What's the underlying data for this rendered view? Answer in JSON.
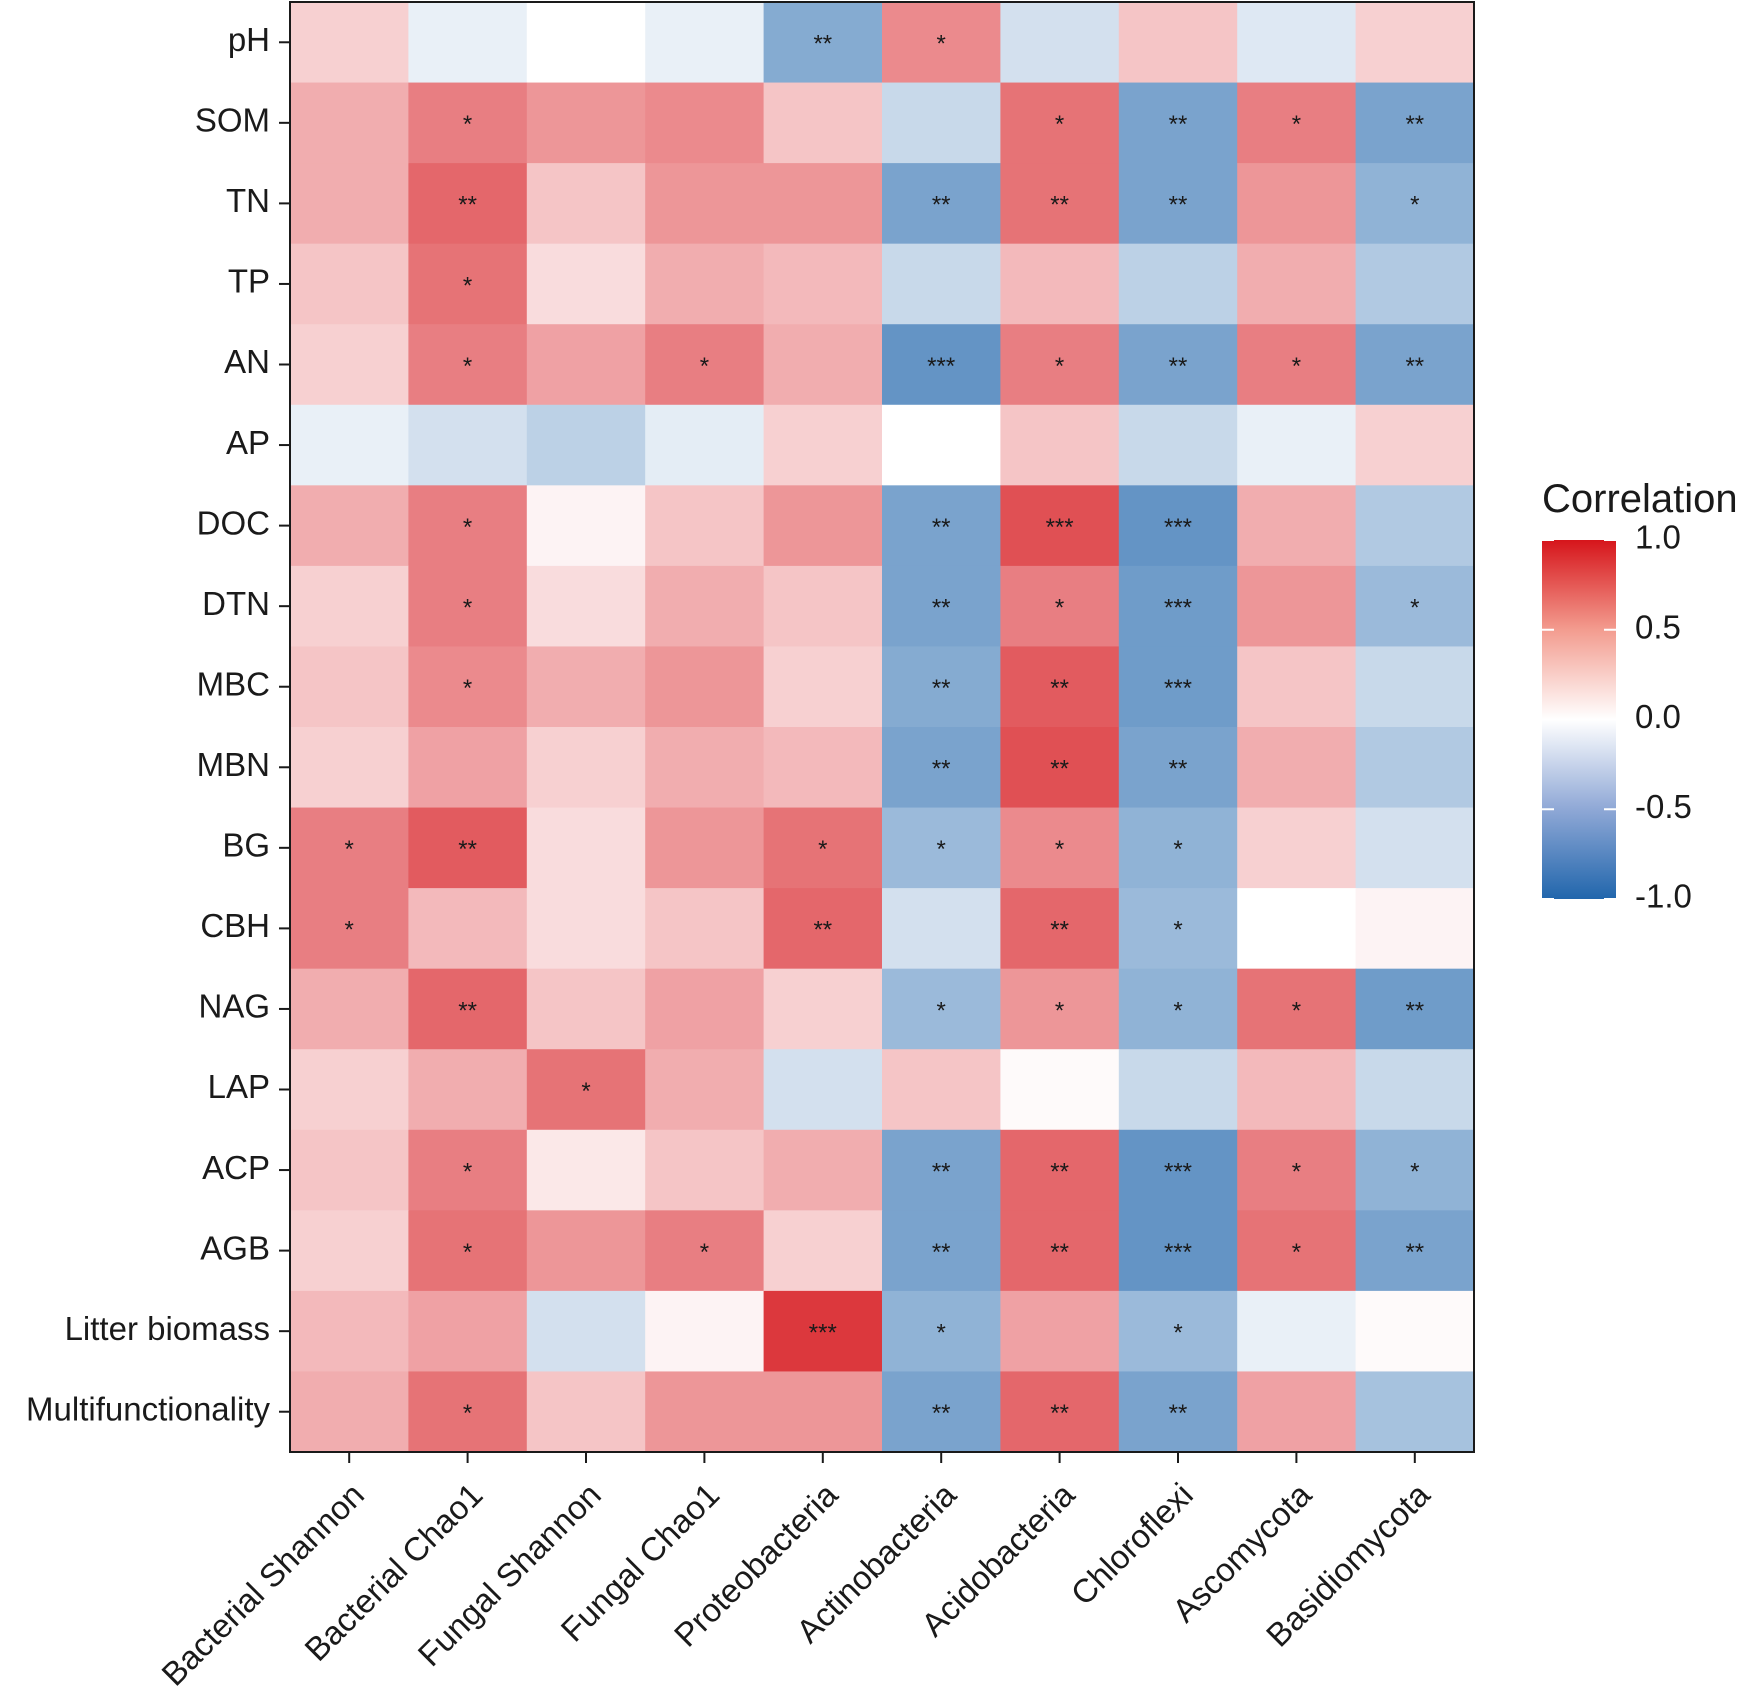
{
  "chart_data": {
    "type": "heatmap",
    "title": "",
    "xlabel": "",
    "ylabel": "",
    "rows": [
      "pH",
      "SOM",
      "TN",
      "TP",
      "AN",
      "AP",
      "DOC",
      "DTN",
      "MBC",
      "MBN",
      "BG",
      "CBH",
      "NAG",
      "LAP",
      "ACP",
      "AGB",
      "Litter biomass",
      "Multifunctionality"
    ],
    "columns": [
      "Bacterial Shannon",
      "Bacterial Chao1",
      "Fungal Shannon",
      "Fungal Chao1",
      "Proteobacteria",
      "Actinobacteria",
      "Acidobacteria",
      "Chloroflexi",
      "Ascomycota",
      "Basidiomycota"
    ],
    "values": [
      [
        0.2,
        -0.1,
        0.0,
        -0.1,
        -0.55,
        0.5,
        -0.2,
        0.25,
        -0.15,
        0.2
      ],
      [
        0.35,
        0.55,
        0.45,
        0.5,
        0.25,
        -0.25,
        0.6,
        -0.6,
        0.55,
        -0.6
      ],
      [
        0.35,
        0.65,
        0.25,
        0.45,
        0.45,
        -0.6,
        0.6,
        -0.6,
        0.45,
        -0.5
      ],
      [
        0.25,
        0.6,
        0.15,
        0.35,
        0.3,
        -0.25,
        0.3,
        -0.3,
        0.35,
        -0.35
      ],
      [
        0.2,
        0.55,
        0.4,
        0.55,
        0.35,
        -0.7,
        0.55,
        -0.6,
        0.55,
        -0.6
      ],
      [
        -0.1,
        -0.2,
        -0.3,
        -0.12,
        0.2,
        0.0,
        0.25,
        -0.25,
        -0.1,
        0.2
      ],
      [
        0.35,
        0.55,
        0.05,
        0.25,
        0.45,
        -0.6,
        0.75,
        -0.7,
        0.35,
        -0.35
      ],
      [
        0.2,
        0.55,
        0.15,
        0.35,
        0.25,
        -0.6,
        0.55,
        -0.65,
        0.45,
        -0.45
      ],
      [
        0.25,
        0.5,
        0.35,
        0.45,
        0.2,
        -0.55,
        0.7,
        -0.65,
        0.25,
        -0.25
      ],
      [
        0.2,
        0.4,
        0.2,
        0.35,
        0.3,
        -0.6,
        0.75,
        -0.6,
        0.35,
        -0.35
      ],
      [
        0.55,
        0.7,
        0.15,
        0.45,
        0.6,
        -0.45,
        0.5,
        -0.5,
        0.2,
        -0.2
      ],
      [
        0.55,
        0.3,
        0.15,
        0.25,
        0.65,
        -0.2,
        0.65,
        -0.45,
        0.0,
        0.05
      ],
      [
        0.35,
        0.65,
        0.25,
        0.4,
        0.2,
        -0.45,
        0.45,
        -0.5,
        0.6,
        -0.65
      ],
      [
        0.2,
        0.35,
        0.6,
        0.35,
        -0.2,
        0.25,
        0.02,
        -0.25,
        0.3,
        -0.25
      ],
      [
        0.25,
        0.55,
        0.1,
        0.25,
        0.35,
        -0.6,
        0.65,
        -0.7,
        0.55,
        -0.5
      ],
      [
        0.2,
        0.6,
        0.45,
        0.55,
        0.2,
        -0.6,
        0.65,
        -0.7,
        0.6,
        -0.6
      ],
      [
        0.3,
        0.4,
        -0.2,
        0.05,
        0.85,
        -0.5,
        0.4,
        -0.45,
        -0.1,
        0.02
      ],
      [
        0.35,
        0.6,
        0.25,
        0.45,
        0.45,
        -0.6,
        0.65,
        -0.6,
        0.4,
        -0.4
      ]
    ],
    "significance": [
      [
        "",
        "",
        "",
        "",
        "**",
        "*",
        "",
        "",
        "",
        ""
      ],
      [
        "",
        "*",
        "",
        "",
        "",
        "",
        "*",
        "**",
        "*",
        "**"
      ],
      [
        "",
        "**",
        "",
        "",
        "",
        "**",
        "**",
        "**",
        "",
        "*"
      ],
      [
        "",
        "*",
        "",
        "",
        "",
        "",
        "",
        "",
        "",
        ""
      ],
      [
        "",
        "*",
        "",
        "*",
        "",
        "***",
        "*",
        "**",
        "*",
        "**"
      ],
      [
        "",
        "",
        "",
        "",
        "",
        "",
        "",
        "",
        "",
        ""
      ],
      [
        "",
        "*",
        "",
        "",
        "",
        "**",
        "***",
        "***",
        "",
        ""
      ],
      [
        "",
        "*",
        "",
        "",
        "",
        "**",
        "*",
        "***",
        "",
        "*"
      ],
      [
        "",
        "*",
        "",
        "",
        "",
        "**",
        "**",
        "***",
        "",
        ""
      ],
      [
        "",
        "",
        "",
        "",
        "",
        "**",
        "**",
        "**",
        "",
        ""
      ],
      [
        "*",
        "**",
        "",
        "",
        "*",
        "*",
        "*",
        "*",
        "",
        ""
      ],
      [
        "*",
        "",
        "",
        "",
        "**",
        "",
        "**",
        "*",
        "",
        ""
      ],
      [
        "",
        "**",
        "",
        "",
        "",
        "*",
        "*",
        "*",
        "*",
        "**"
      ],
      [
        "",
        "",
        "*",
        "",
        "",
        "",
        "",
        "",
        "",
        ""
      ],
      [
        "",
        "*",
        "",
        "",
        "",
        "**",
        "**",
        "***",
        "*",
        "*"
      ],
      [
        "",
        "*",
        "",
        "*",
        "",
        "**",
        "**",
        "***",
        "*",
        "**"
      ],
      [
        "",
        "",
        "",
        "",
        "***",
        "*",
        "",
        "*",
        "",
        ""
      ],
      [
        "",
        "*",
        "",
        "",
        "",
        "**",
        "**",
        "**",
        "",
        ""
      ]
    ],
    "color_scale": {
      "low": "#2166AC",
      "mid": "#FFFFFF",
      "high": "#D6151B",
      "range": [
        -1.0,
        1.0
      ]
    },
    "legend": {
      "title": "Correlation",
      "ticks": [
        "1.0",
        "0.5",
        "0.0",
        "-0.5",
        "-1.0"
      ],
      "placement": "right"
    }
  }
}
